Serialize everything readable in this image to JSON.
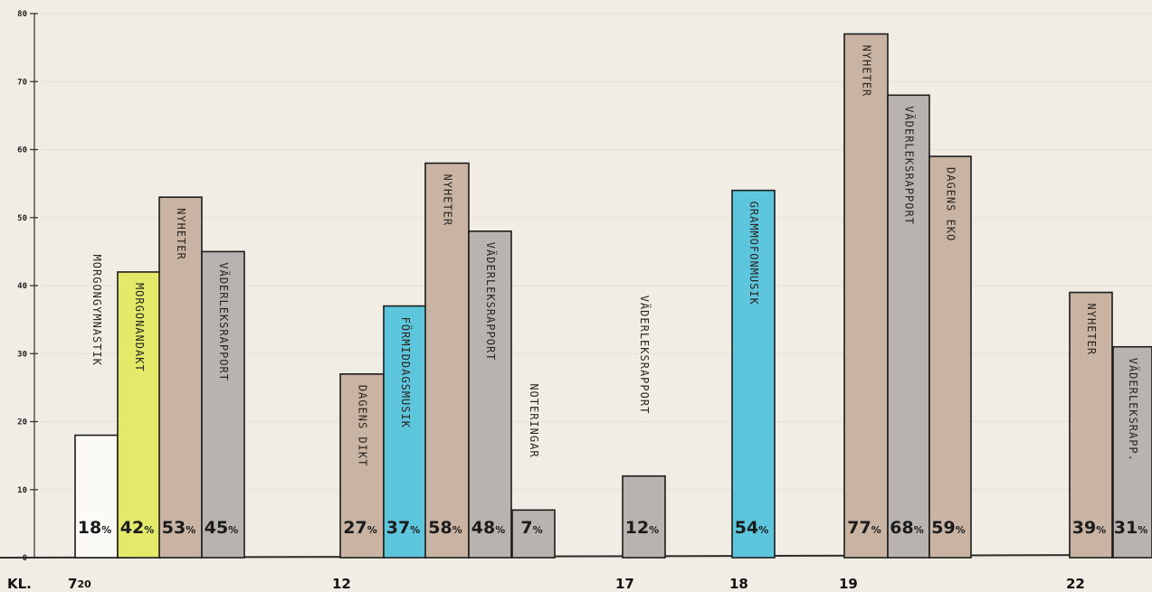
{
  "colors": {
    "paper": "#f1ede4",
    "white": "#fbfaf6",
    "yellow": "#e3ea6a",
    "brown": "#c9b4a4",
    "gray": "#b9b3b0",
    "cyan": "#5ec6dc"
  },
  "chart_data": {
    "type": "bar",
    "ylim": [
      0,
      80
    ],
    "yticks": [
      0,
      10,
      20,
      30,
      40,
      50,
      60,
      70,
      80
    ],
    "x_prefix": "KL.",
    "time_labels": [
      {
        "main": "7",
        "sup": "20"
      },
      {
        "main": "12",
        "sup": ""
      },
      {
        "main": "17",
        "sup": ""
      },
      {
        "main": "18",
        "sup": ""
      },
      {
        "main": "19",
        "sup": ""
      },
      {
        "main": "22",
        "sup": ""
      }
    ],
    "bars": [
      {
        "time": "7.20",
        "label": "MORGONGYMNASTIK",
        "value": 18,
        "pct": "18",
        "color": "white"
      },
      {
        "time": "7.20",
        "label": "MORGONANDAKT",
        "value": 42,
        "pct": "42",
        "color": "yellow"
      },
      {
        "time": "7.20",
        "label": "NYHETER",
        "value": 53,
        "pct": "53",
        "color": "brown"
      },
      {
        "time": "7.20",
        "label": "VÄDERLEKSRAPPORT",
        "value": 45,
        "pct": "45",
        "color": "gray"
      },
      {
        "time": "12",
        "label": "DAGENS DIKT",
        "value": 27,
        "pct": "27",
        "color": "brown"
      },
      {
        "time": "12",
        "label": "FÖRMIDDAGSMUSIK",
        "value": 37,
        "pct": "37",
        "color": "cyan"
      },
      {
        "time": "12",
        "label": "NYHETER",
        "value": 58,
        "pct": "58",
        "color": "brown"
      },
      {
        "time": "12",
        "label": "VÄDERLEKSRAPPORT",
        "value": 48,
        "pct": "48",
        "color": "gray"
      },
      {
        "time": "12",
        "label": "NOTERINGAR",
        "value": 7,
        "pct": "7",
        "color": "gray"
      },
      {
        "time": "17",
        "label": "VÄDERLEKSRAPPORT",
        "value": 12,
        "pct": "12",
        "color": "gray"
      },
      {
        "time": "18",
        "label": "GRAMMOFONMUSIK",
        "value": 54,
        "pct": "54",
        "color": "cyan"
      },
      {
        "time": "19",
        "label": "NYHETER",
        "value": 77,
        "pct": "77",
        "color": "brown"
      },
      {
        "time": "19",
        "label": "VÄDERLEKSRAPPORT",
        "value": 68,
        "pct": "68",
        "color": "gray"
      },
      {
        "time": "19",
        "label": "DAGENS EKO",
        "value": 59,
        "pct": "59",
        "color": "brown"
      },
      {
        "time": "22",
        "label": "NYHETER",
        "value": 39,
        "pct": "39",
        "color": "brown"
      },
      {
        "time": "22",
        "label": "VÄDERLEKSRAPP.",
        "value": 31,
        "pct": "31",
        "color": "gray"
      }
    ]
  }
}
